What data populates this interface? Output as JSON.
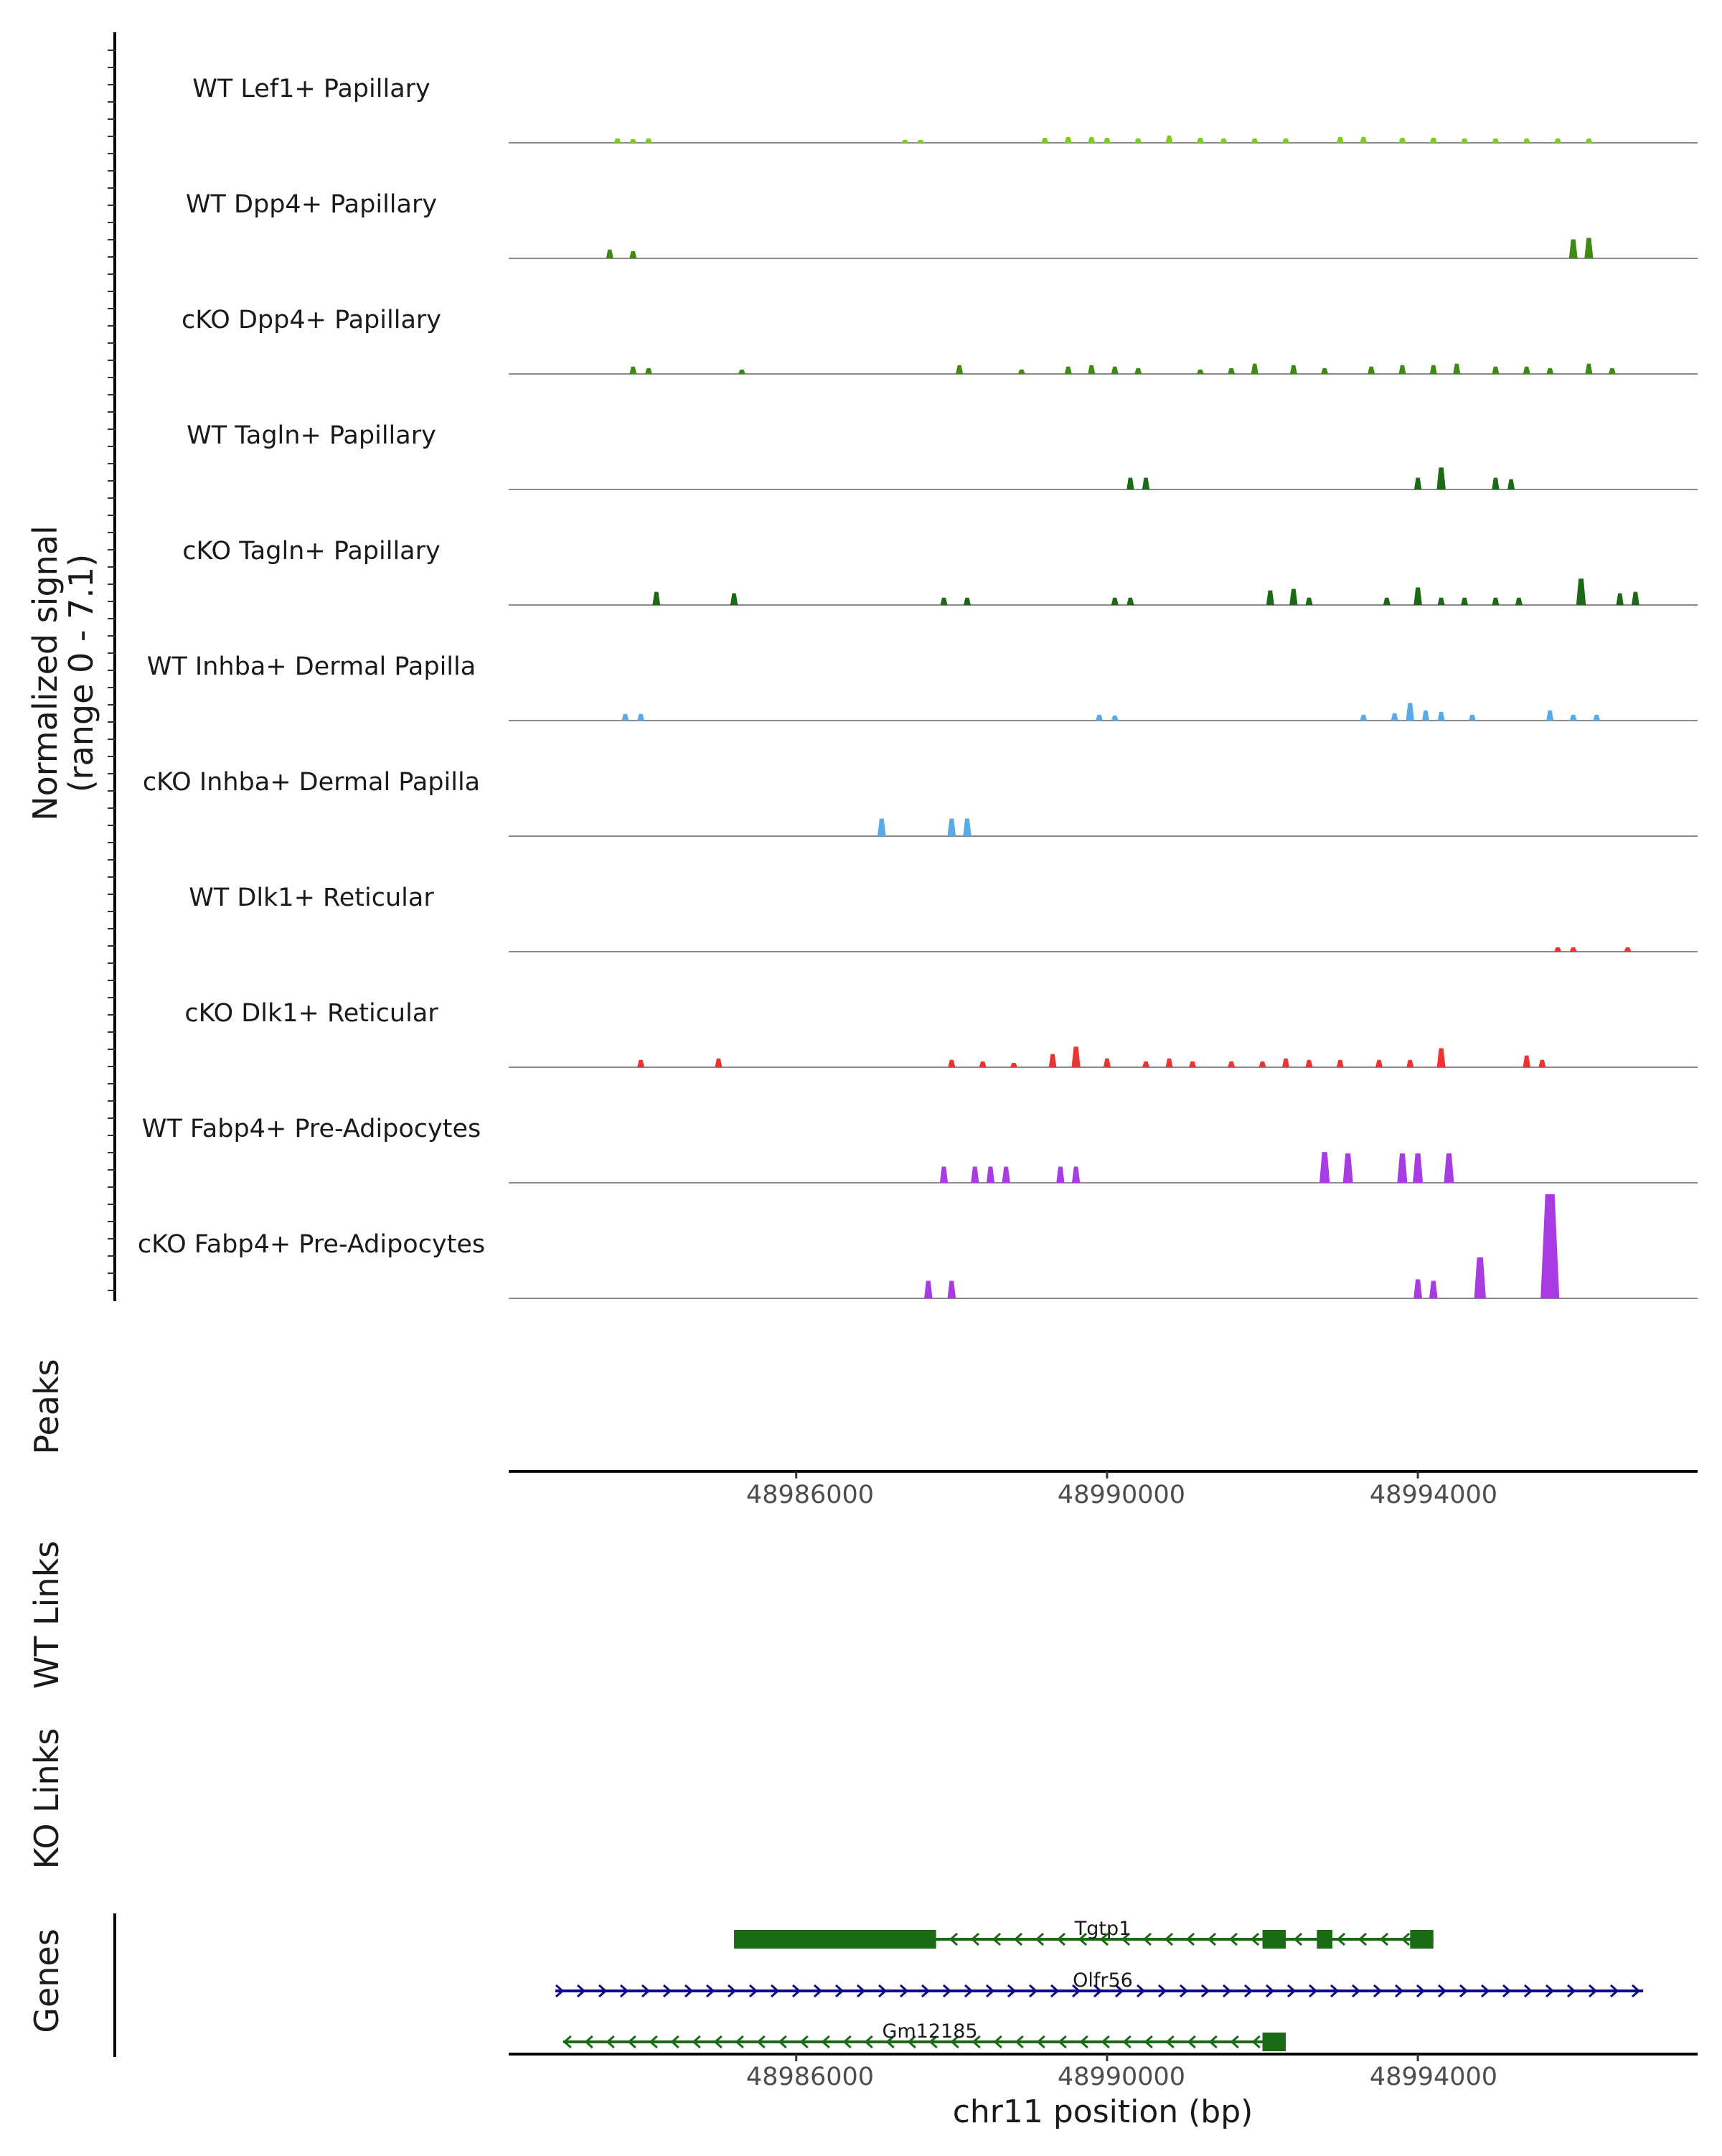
{
  "chart_data": {
    "type": "area",
    "title": "",
    "region_chrom": "chr11",
    "xlim": [
      48982300,
      48997600
    ],
    "xlabel": "chr11 position (bp)",
    "xticks": [
      {
        "value": 48986000,
        "label": "48986000"
      },
      {
        "value": 48990000,
        "label": "48990000"
      },
      {
        "value": 48994000,
        "label": "48994000"
      }
    ],
    "ylabel": "Normalized signal\n(range 0 - 7.1)",
    "ylabel_line1": "Normalized signal",
    "ylabel_line2": "(range 0 - 7.1)",
    "ylim": [
      0,
      7.1
    ],
    "panel_labels": {
      "peaks": "Peaks",
      "wt_links": "WT Links",
      "ko_links": "KO Links",
      "genes": "Genes"
    },
    "tracks": [
      {
        "name": "WT Lef1+ Papillary",
        "color": "#7CCD1A",
        "peaks": [
          [
            48983700,
            0.3
          ],
          [
            48983900,
            0.25
          ],
          [
            48984100,
            0.3
          ],
          [
            48987400,
            0.2
          ],
          [
            48987600,
            0.2
          ],
          [
            48989200,
            0.35
          ],
          [
            48989500,
            0.4
          ],
          [
            48989800,
            0.4
          ],
          [
            48990000,
            0.35
          ],
          [
            48990400,
            0.3
          ],
          [
            48990800,
            0.5
          ],
          [
            48991200,
            0.35
          ],
          [
            48991500,
            0.3
          ],
          [
            48991900,
            0.3
          ],
          [
            48992300,
            0.3
          ],
          [
            48993000,
            0.4
          ],
          [
            48993300,
            0.4
          ],
          [
            48993800,
            0.35
          ],
          [
            48994200,
            0.35
          ],
          [
            48994600,
            0.3
          ],
          [
            48995000,
            0.3
          ],
          [
            48995400,
            0.3
          ],
          [
            48995800,
            0.3
          ],
          [
            48996200,
            0.3
          ]
        ]
      },
      {
        "name": "WT Dpp4+ Papillary",
        "color": "#3D8B10",
        "peaks": [
          [
            48983600,
            0.6
          ],
          [
            48983900,
            0.5
          ],
          [
            48996000,
            1.3
          ],
          [
            48996200,
            1.4
          ]
        ]
      },
      {
        "name": "cKO Dpp4+ Papillary",
        "color": "#3D8B10",
        "peaks": [
          [
            48983900,
            0.5
          ],
          [
            48984100,
            0.4
          ],
          [
            48985300,
            0.3
          ],
          [
            48988100,
            0.6
          ],
          [
            48988900,
            0.3
          ],
          [
            48989500,
            0.5
          ],
          [
            48989800,
            0.6
          ],
          [
            48990100,
            0.5
          ],
          [
            48990400,
            0.4
          ],
          [
            48991200,
            0.3
          ],
          [
            48991600,
            0.4
          ],
          [
            48991900,
            0.7
          ],
          [
            48992400,
            0.6
          ],
          [
            48992800,
            0.4
          ],
          [
            48993400,
            0.5
          ],
          [
            48993800,
            0.6
          ],
          [
            48994200,
            0.6
          ],
          [
            48994500,
            0.7
          ],
          [
            48995000,
            0.5
          ],
          [
            48995400,
            0.5
          ],
          [
            48995700,
            0.4
          ],
          [
            48996200,
            0.7
          ],
          [
            48996500,
            0.4
          ]
        ]
      },
      {
        "name": "WT Tagln+ Papillary",
        "color": "#1A6B14",
        "peaks": [
          [
            48990300,
            0.8
          ],
          [
            48990500,
            0.8
          ],
          [
            48994000,
            0.8
          ],
          [
            48994300,
            1.5
          ],
          [
            48995000,
            0.8
          ],
          [
            48995200,
            0.7
          ]
        ]
      },
      {
        "name": "cKO Tagln+ Papillary",
        "color": "#1A6B14",
        "peaks": [
          [
            48984200,
            0.9
          ],
          [
            48985200,
            0.8
          ],
          [
            48987900,
            0.5
          ],
          [
            48988200,
            0.5
          ],
          [
            48990100,
            0.5
          ],
          [
            48990300,
            0.5
          ],
          [
            48992100,
            1.0
          ],
          [
            48992400,
            1.1
          ],
          [
            48992600,
            0.5
          ],
          [
            48993600,
            0.5
          ],
          [
            48994000,
            1.2
          ],
          [
            48994300,
            0.5
          ],
          [
            48994600,
            0.5
          ],
          [
            48995000,
            0.5
          ],
          [
            48995300,
            0.5
          ],
          [
            48996100,
            1.8
          ],
          [
            48996600,
            0.8
          ],
          [
            48996800,
            0.9
          ]
        ]
      },
      {
        "name": "WT Inhba+ Dermal Papilla",
        "color": "#5AAAE8",
        "peaks": [
          [
            48983800,
            0.45
          ],
          [
            48984000,
            0.45
          ],
          [
            48989900,
            0.4
          ],
          [
            48990100,
            0.35
          ],
          [
            48993300,
            0.4
          ],
          [
            48993700,
            0.5
          ],
          [
            48993900,
            1.2
          ],
          [
            48994100,
            0.7
          ],
          [
            48994300,
            0.6
          ],
          [
            48994700,
            0.4
          ],
          [
            48995700,
            0.7
          ],
          [
            48996000,
            0.4
          ],
          [
            48996300,
            0.4
          ]
        ]
      },
      {
        "name": "cKO Inhba+ Dermal Papilla",
        "color": "#5AAAE8",
        "peaks": [
          [
            48987100,
            1.2
          ],
          [
            48988000,
            1.2
          ],
          [
            48988200,
            1.2
          ]
        ]
      },
      {
        "name": "WT Dlk1+ Reticular",
        "color": "#EE3333",
        "peaks": [
          [
            48995800,
            0.3
          ],
          [
            48996000,
            0.3
          ],
          [
            48996700,
            0.3
          ]
        ]
      },
      {
        "name": "cKO Dlk1+ Reticular",
        "color": "#EE3333",
        "peaks": [
          [
            48984000,
            0.5
          ],
          [
            48985000,
            0.6
          ],
          [
            48988000,
            0.5
          ],
          [
            48988400,
            0.4
          ],
          [
            48988800,
            0.3
          ],
          [
            48989300,
            0.9
          ],
          [
            48989600,
            1.4
          ],
          [
            48990000,
            0.6
          ],
          [
            48990500,
            0.4
          ],
          [
            48990800,
            0.6
          ],
          [
            48991100,
            0.4
          ],
          [
            48991600,
            0.4
          ],
          [
            48992000,
            0.4
          ],
          [
            48992300,
            0.6
          ],
          [
            48992600,
            0.5
          ],
          [
            48993000,
            0.5
          ],
          [
            48993500,
            0.5
          ],
          [
            48993900,
            0.5
          ],
          [
            48994300,
            1.3
          ],
          [
            48995400,
            0.8
          ],
          [
            48995600,
            0.5
          ]
        ]
      },
      {
        "name": "WT Fabp4+ Pre-Adipocytes",
        "color": "#A93BE3",
        "peaks": [
          [
            48987900,
            1.1
          ],
          [
            48988300,
            1.1
          ],
          [
            48988500,
            1.1
          ],
          [
            48988700,
            1.1
          ],
          [
            48989400,
            1.1
          ],
          [
            48989600,
            1.1
          ],
          [
            48992800,
            2.1
          ],
          [
            48993100,
            2.0
          ],
          [
            48993800,
            2.0
          ],
          [
            48994000,
            2.0
          ],
          [
            48994400,
            2.0
          ]
        ]
      },
      {
        "name": "cKO Fabp4+ Pre-Adipocytes",
        "color": "#A93BE3",
        "peaks": [
          [
            48987700,
            1.2
          ],
          [
            48988000,
            1.2
          ],
          [
            48994000,
            1.3
          ],
          [
            48994200,
            1.2
          ],
          [
            48994800,
            2.8
          ],
          [
            48995700,
            7.1
          ]
        ]
      }
    ],
    "genes": [
      {
        "name": "Tgtp1",
        "color": "#1A6B14",
        "start": 48985200,
        "end": 48994200,
        "strand": "-",
        "exons": [
          [
            48985200,
            48987800
          ],
          [
            48992000,
            48992300
          ],
          [
            48992700,
            48992900
          ],
          [
            48993900,
            48994200
          ]
        ],
        "label_pos": 48989700
      },
      {
        "name": "Olfr56",
        "color": "#0A0A8A",
        "start": 48982900,
        "end": 48996900,
        "strand": "+",
        "exons": [],
        "label_pos": 48989700
      },
      {
        "name": "Gm12185",
        "color": "#1A6B14",
        "start": 48983000,
        "end": 48992300,
        "strand": "-",
        "exons": [
          [
            48992000,
            48992300
          ]
        ],
        "label_pos": 48987300
      }
    ]
  }
}
